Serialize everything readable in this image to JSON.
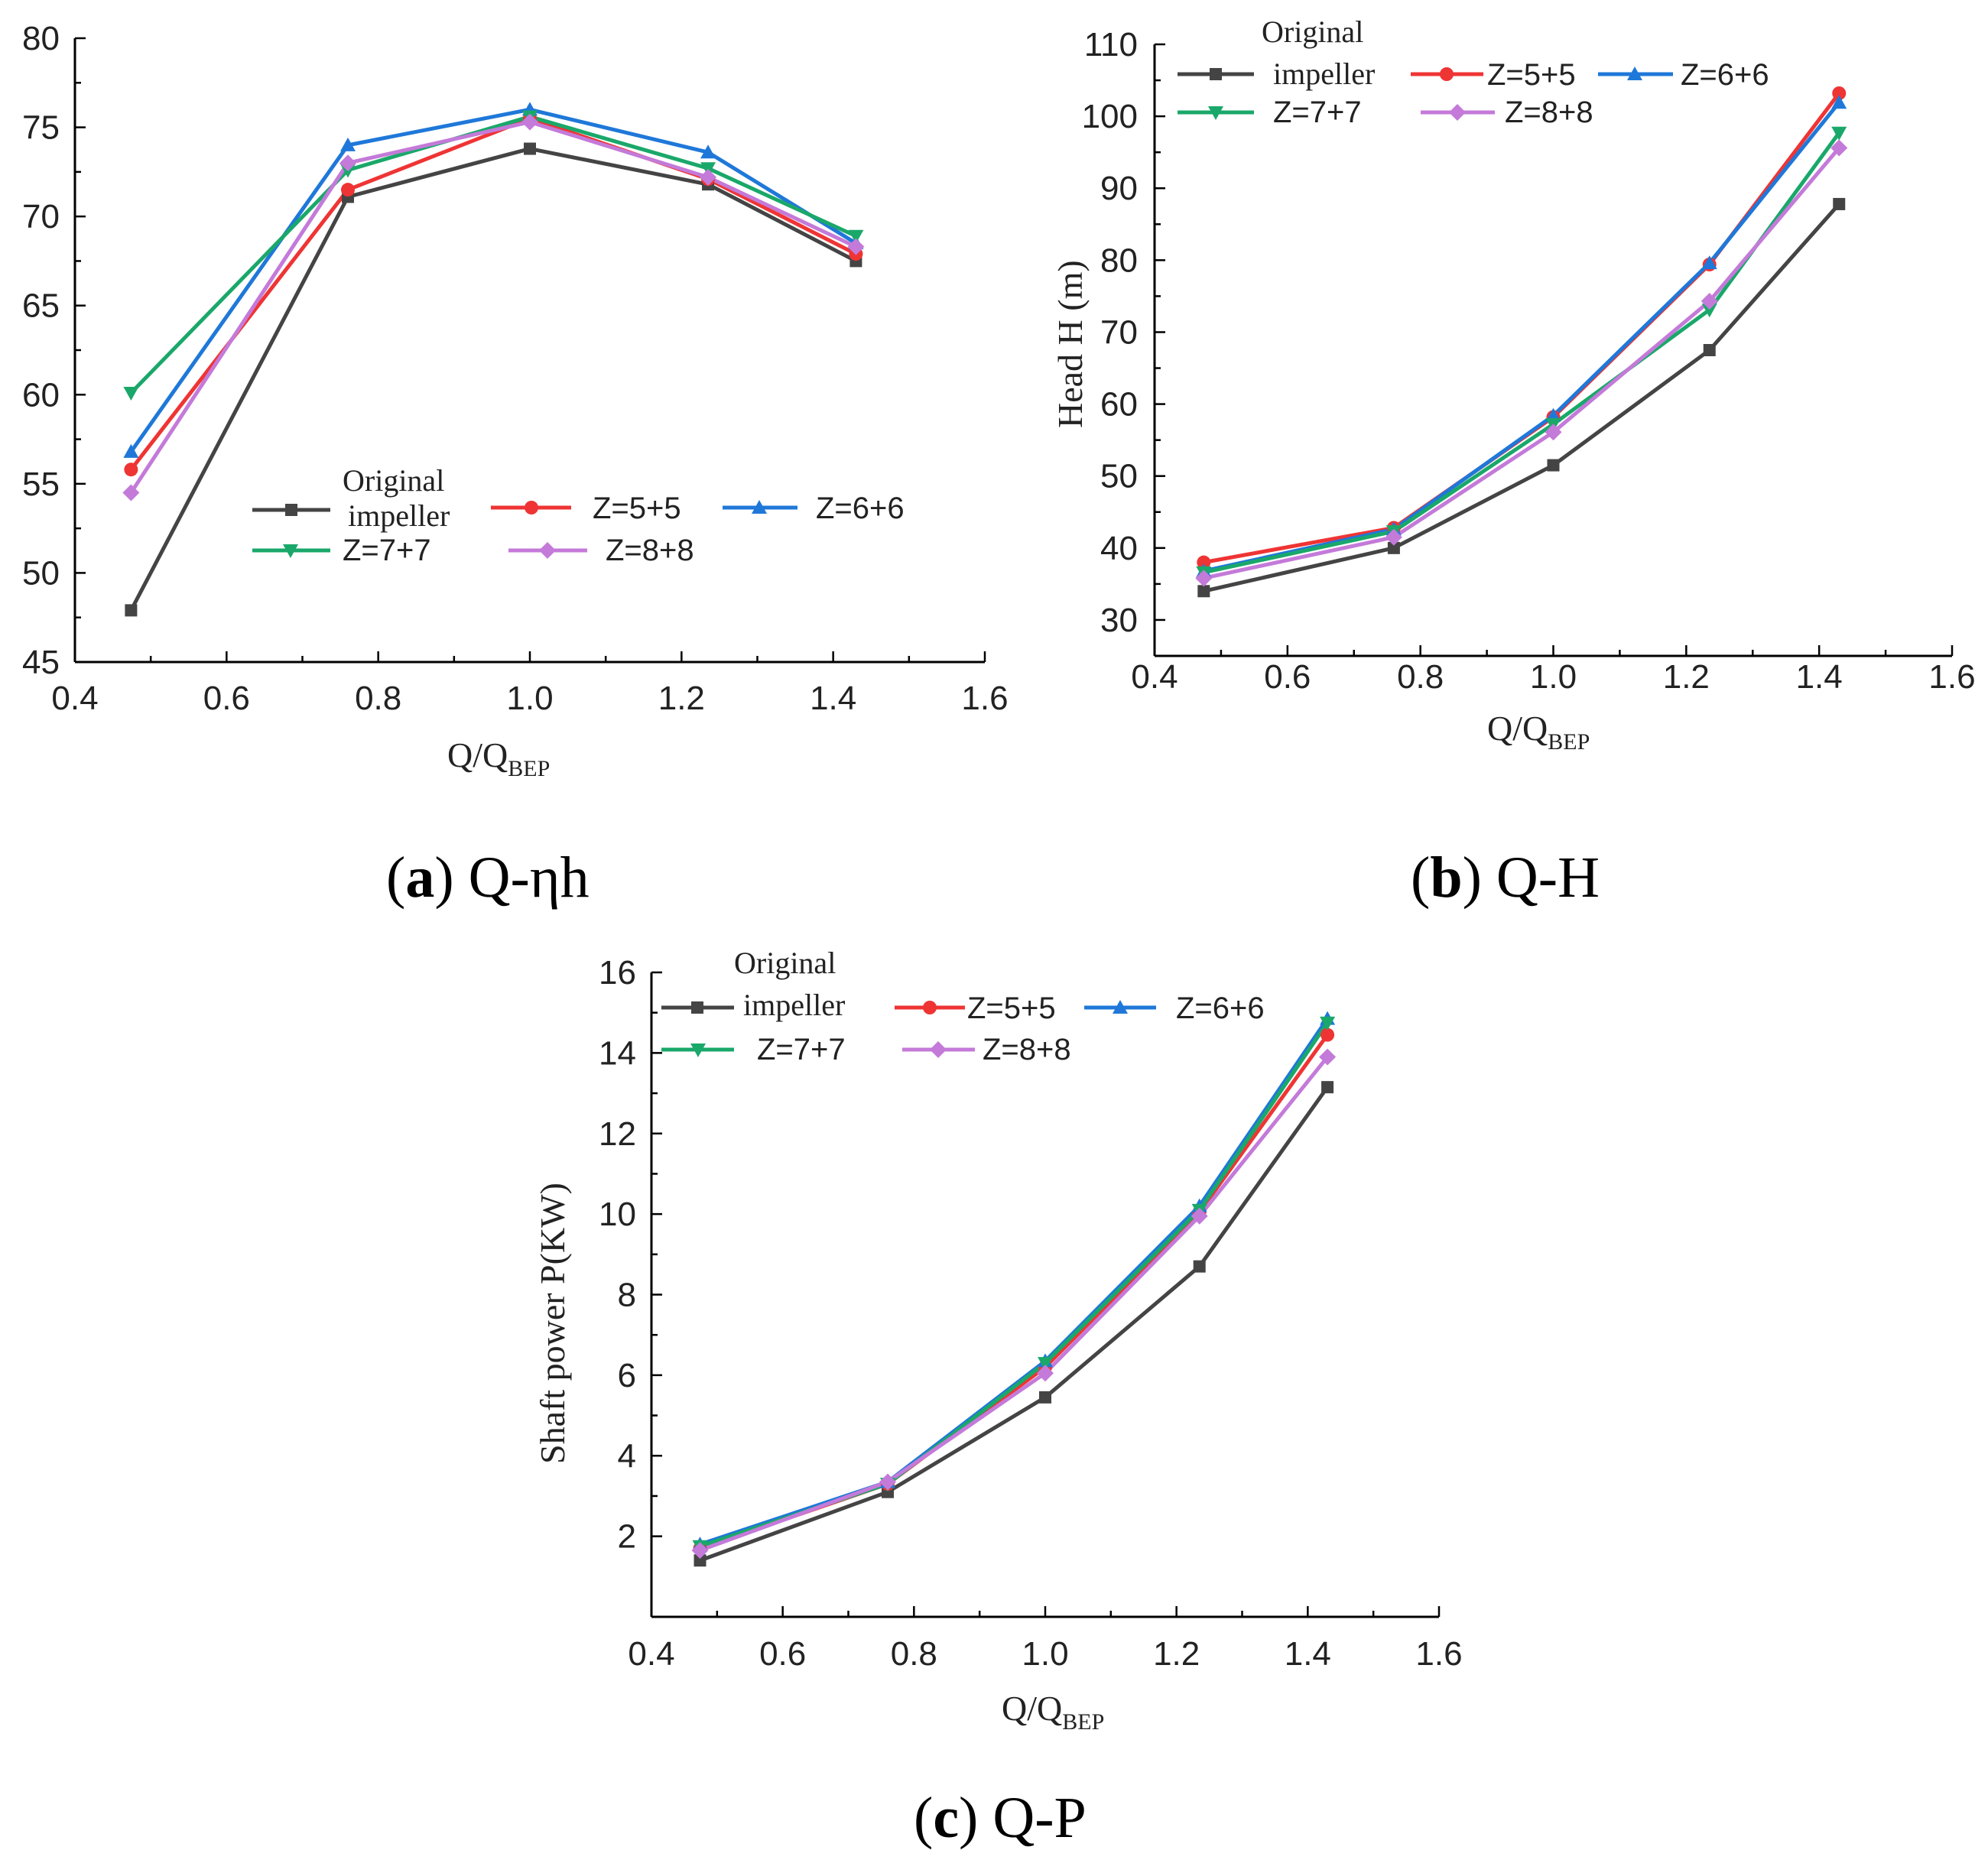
{
  "colors": {
    "original": "#444444",
    "z5": "#ef3434",
    "z6": "#1f78d9",
    "z7": "#1aa86a",
    "z8": "#c47ad9"
  },
  "legend": {
    "original_line1": "Original",
    "original_line2": "impeller",
    "z5": "Z=5+5",
    "z6": "Z=6+6",
    "z7": "Z=7+7",
    "z8": "Z=8+8"
  },
  "captions": {
    "a_letter": "a",
    "a_text": " Q-ηh",
    "b_letter": "b",
    "b_text": " Q-H",
    "c_letter": "c",
    "c_text": " Q-P"
  },
  "chart_data": [
    {
      "id": "a",
      "type": "line",
      "title": "(a) Q-ηh",
      "xlabel_main": "Q/Q",
      "xlabel_sub": "BEP",
      "ylabel": "",
      "xlim": [
        0.4,
        1.6
      ],
      "ylim": [
        45,
        80
      ],
      "xticks": [
        "0.4",
        "0.6",
        "0.8",
        "1.0",
        "1.2",
        "1.4",
        "1.6"
      ],
      "yticks": [
        "45",
        "50",
        "55",
        "60",
        "65",
        "70",
        "75",
        "80"
      ],
      "x": [
        0.474,
        0.76,
        1.0,
        1.235,
        1.43
      ],
      "series": [
        {
          "name": "Original impeller",
          "key": "original",
          "marker": "square",
          "values": [
            47.9,
            71.1,
            73.8,
            71.8,
            67.5
          ]
        },
        {
          "name": "Z=5+5",
          "key": "z5",
          "marker": "circle",
          "values": [
            55.8,
            71.5,
            75.5,
            72.1,
            67.9
          ]
        },
        {
          "name": "Z=6+6",
          "key": "z6",
          "marker": "triangle-up",
          "values": [
            56.8,
            74.0,
            76.0,
            73.6,
            68.5
          ]
        },
        {
          "name": "Z=7+7",
          "key": "z7",
          "marker": "triangle-down",
          "values": [
            60.1,
            72.6,
            75.6,
            72.7,
            68.9
          ]
        },
        {
          "name": "Z=8+8",
          "key": "z8",
          "marker": "diamond",
          "values": [
            54.5,
            73.0,
            75.3,
            72.2,
            68.3
          ]
        }
      ]
    },
    {
      "id": "b",
      "type": "line",
      "title": "(b) Q-H",
      "xlabel_main": "Q/Q",
      "xlabel_sub": "BEP",
      "ylabel": "Head H  (m)",
      "xlim": [
        0.4,
        1.6
      ],
      "ylim": [
        25,
        110
      ],
      "xticks": [
        "0.4",
        "0.6",
        "0.8",
        "1.0",
        "1.2",
        "1.4",
        "1.6"
      ],
      "yticks": [
        "30",
        "40",
        "50",
        "60",
        "70",
        "80",
        "90",
        "100",
        "110"
      ],
      "x": [
        0.474,
        0.76,
        1.0,
        1.235,
        1.43
      ],
      "series": [
        {
          "name": "Original impeller",
          "key": "original",
          "marker": "square",
          "values": [
            34.0,
            40.0,
            51.5,
            67.5,
            87.8
          ]
        },
        {
          "name": "Z=5+5",
          "key": "z5",
          "marker": "circle",
          "values": [
            38.0,
            42.8,
            58.2,
            79.4,
            103.2
          ]
        },
        {
          "name": "Z=6+6",
          "key": "z6",
          "marker": "triangle-up",
          "values": [
            36.8,
            42.6,
            58.4,
            79.6,
            101.9
          ]
        },
        {
          "name": "Z=7+7",
          "key": "z7",
          "marker": "triangle-down",
          "values": [
            36.6,
            42.3,
            57.2,
            73.1,
            97.7
          ]
        },
        {
          "name": "Z=8+8",
          "key": "z8",
          "marker": "diamond",
          "values": [
            35.8,
            41.5,
            56.1,
            74.3,
            95.6
          ]
        }
      ]
    },
    {
      "id": "c",
      "type": "line",
      "title": "(c) Q-P",
      "xlabel_main": "Q/Q",
      "xlabel_sub": "BEP",
      "ylabel": "Shaft power P(KW)",
      "xlim": [
        0.4,
        1.6
      ],
      "ylim": [
        0,
        16
      ],
      "xticks": [
        "0.4",
        "0.6",
        "0.8",
        "1.0",
        "1.2",
        "1.4",
        "1.6"
      ],
      "yticks": [
        "2",
        "4",
        "6",
        "8",
        "10",
        "12",
        "14",
        "16"
      ],
      "x": [
        0.474,
        0.76,
        1.0,
        1.235,
        1.43
      ],
      "series": [
        {
          "name": "Original impeller",
          "key": "original",
          "marker": "square",
          "values": [
            1.4,
            3.1,
            5.45,
            8.7,
            13.15
          ]
        },
        {
          "name": "Z=5+5",
          "key": "z5",
          "marker": "circle",
          "values": [
            1.7,
            3.3,
            6.2,
            10.05,
            14.45
          ]
        },
        {
          "name": "Z=6+6",
          "key": "z6",
          "marker": "triangle-up",
          "values": [
            1.8,
            3.35,
            6.35,
            10.2,
            14.85
          ]
        },
        {
          "name": "Z=7+7",
          "key": "z7",
          "marker": "triangle-down",
          "values": [
            1.75,
            3.3,
            6.3,
            10.1,
            14.75
          ]
        },
        {
          "name": "Z=8+8",
          "key": "z8",
          "marker": "diamond",
          "values": [
            1.65,
            3.35,
            6.05,
            9.95,
            13.9
          ]
        }
      ]
    }
  ]
}
